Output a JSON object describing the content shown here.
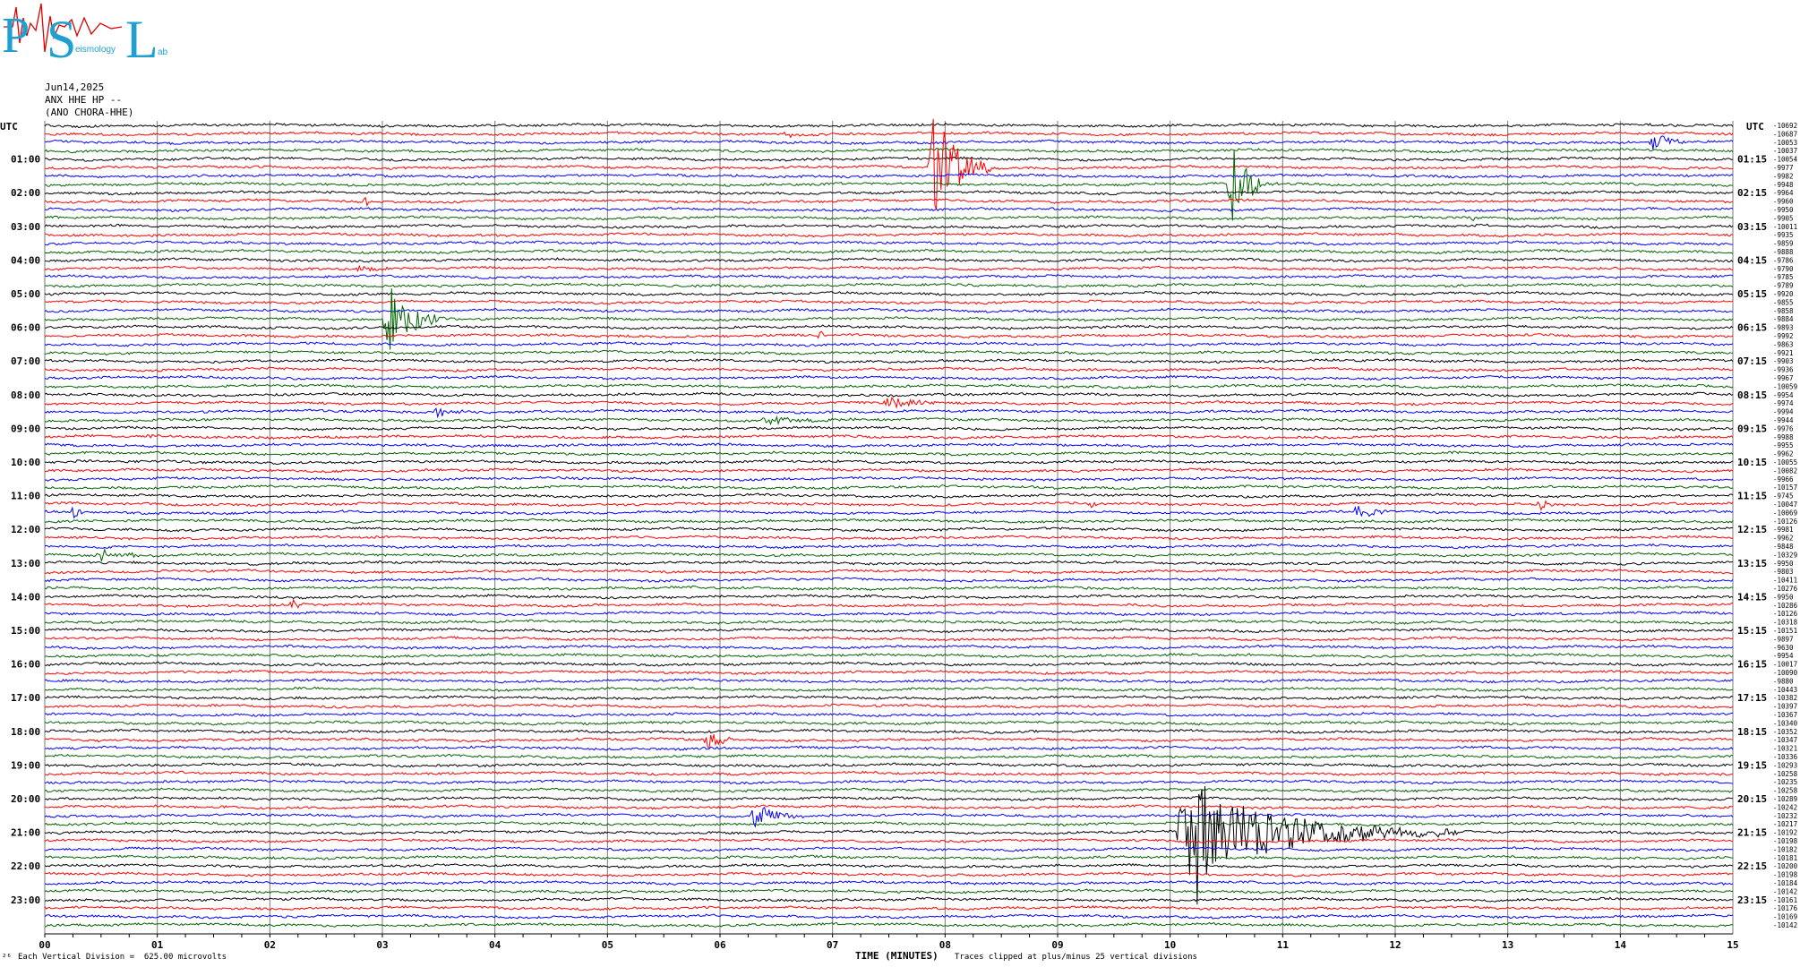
{
  "logo": {
    "big_letters": [
      "P",
      "S",
      "L"
    ],
    "small_text": "eismology",
    "small_text2": "ab"
  },
  "header": {
    "date": "Jun14,2025",
    "channel": "ANX HHE HP --",
    "station": "(ANO CHORA-HHE)"
  },
  "footer": {
    "left_note": "Each Vertical Division =  625.00 microvolts",
    "clip_note": "Traces clipped at plus/minus 25 vertical divisions",
    "corner_mark": "₂₆"
  },
  "chart_data": {
    "type": "line",
    "title": "",
    "xlabel": "TIME (MINUTES)",
    "ylabel": "",
    "xlim": [
      0,
      15
    ],
    "x_ticks": [
      "00",
      "01",
      "02",
      "03",
      "04",
      "05",
      "06",
      "07",
      "08",
      "09",
      "10",
      "11",
      "12",
      "13",
      "14",
      "15"
    ],
    "left_axis_top": "UTC",
    "right_axis_top": "UTC",
    "left_labels": [
      "01:00",
      "02:00",
      "03:00",
      "04:00",
      "05:00",
      "06:00",
      "07:00",
      "08:00",
      "09:00",
      "10:00",
      "11:00",
      "12:00",
      "13:00",
      "14:00",
      "15:00",
      "16:00",
      "17:00",
      "18:00",
      "19:00",
      "20:00",
      "21:00",
      "22:00",
      "23:00"
    ],
    "right_labels": [
      "01:15",
      "02:15",
      "03:15",
      "04:15",
      "05:15",
      "06:15",
      "07:15",
      "08:15",
      "09:15",
      "10:15",
      "11:15",
      "12:15",
      "13:15",
      "14:15",
      "15:15",
      "16:15",
      "17:15",
      "18:15",
      "19:15",
      "20:15",
      "21:15",
      "22:15",
      "23:15"
    ],
    "trace_colors": [
      "#000000",
      "#ff0000",
      "#0000ff",
      "#006400"
    ],
    "trace_count": 96,
    "trace_minutes": 15,
    "trace_offsets": [
      "-10692",
      "-10687",
      "-10053",
      "-10037",
      "-10054",
      "-9977",
      "-9982",
      "-9948",
      "-9964",
      "-9960",
      "-9950",
      "-9905",
      "-10011",
      "-9935",
      "-9859",
      "-9888",
      "-9786",
      "-9790",
      "-9785",
      "-9789",
      "-9920",
      "-9855",
      "-9858",
      "-9884",
      "-9893",
      "-9992",
      "-9863",
      "-9921",
      "-9903",
      "-9936",
      "-9967",
      "-10059",
      "-9954",
      "-9974",
      "-9994",
      "-9944",
      "-9976",
      "-9988",
      "-9955",
      "-9962",
      "-10055",
      "-10082",
      "-9966",
      "-10157",
      "-9745",
      "-10047",
      "-10069",
      "-10126",
      "-9981",
      "-9962",
      "-9848",
      "-10329",
      "-9950",
      "-9803",
      "-10411",
      "-10276",
      "-9950",
      "-10286",
      "-10126",
      "-10318",
      "-10151",
      "-9897",
      "-9630",
      "-9954",
      "-10017",
      "-10090",
      "-9880",
      "-10443",
      "-10382",
      "-10397",
      "-10367",
      "-10340",
      "-10352",
      "-10347",
      "-10321",
      "-10336",
      "-10293",
      "-10258",
      "-10235",
      "-10258",
      "-10289",
      "-10242",
      "-10232",
      "-10217",
      "-10192",
      "-10198",
      "-10182",
      "-10181",
      "-10200",
      "-10198",
      "-10184",
      "-10142",
      "-10161",
      "-10176",
      "-10169",
      "-10142"
    ],
    "events": [
      {
        "trace": 1,
        "minute": 6.6,
        "amp": 6,
        "dur": 0.15
      },
      {
        "trace": 2,
        "minute": 14.3,
        "amp": 14,
        "dur": 0.3
      },
      {
        "trace": 5,
        "minute": 7.9,
        "amp": 60,
        "dur": 0.6
      },
      {
        "trace": 7,
        "minute": 10.55,
        "amp": 45,
        "dur": 0.4
      },
      {
        "trace": 9,
        "minute": 2.85,
        "amp": 6,
        "dur": 0.1
      },
      {
        "trace": 11,
        "minute": 12.7,
        "amp": 7,
        "dur": 0.1
      },
      {
        "trace": 17,
        "minute": 2.8,
        "amp": 5,
        "dur": 0.4
      },
      {
        "trace": 23,
        "minute": 3.05,
        "amp": 48,
        "dur": 0.5
      },
      {
        "trace": 25,
        "minute": 6.9,
        "amp": 6,
        "dur": 0.1
      },
      {
        "trace": 33,
        "minute": 7.5,
        "amp": 8,
        "dur": 0.6
      },
      {
        "trace": 34,
        "minute": 3.5,
        "amp": 9,
        "dur": 0.3
      },
      {
        "trace": 35,
        "minute": 6.4,
        "amp": 5,
        "dur": 0.9
      },
      {
        "trace": 37,
        "minute": 0.95,
        "amp": 5,
        "dur": 0.1
      },
      {
        "trace": 45,
        "minute": 9.3,
        "amp": 5,
        "dur": 0.2
      },
      {
        "trace": 45,
        "minute": 13.3,
        "amp": 8,
        "dur": 0.2
      },
      {
        "trace": 46,
        "minute": 0.25,
        "amp": 7,
        "dur": 0.2
      },
      {
        "trace": 46,
        "minute": 11.65,
        "amp": 9,
        "dur": 0.4
      },
      {
        "trace": 51,
        "minute": 0.5,
        "amp": 9,
        "dur": 0.5
      },
      {
        "trace": 57,
        "minute": 2.2,
        "amp": 5,
        "dur": 0.3
      },
      {
        "trace": 73,
        "minute": 5.9,
        "amp": 18,
        "dur": 0.25
      },
      {
        "trace": 82,
        "minute": 6.3,
        "amp": 16,
        "dur": 0.5
      },
      {
        "trace": 84,
        "minute": 10.1,
        "amp": 55,
        "dur": 2.5
      },
      {
        "trace": 84,
        "minute": 10.15,
        "amp": 70,
        "dur": 0.5
      }
    ]
  }
}
